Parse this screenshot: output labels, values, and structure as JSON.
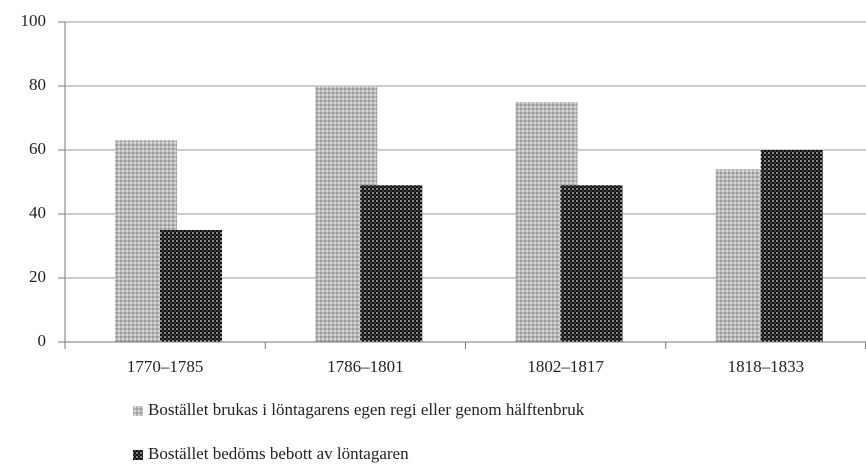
{
  "chart_data": {
    "type": "bar",
    "categories": [
      "1770–1785",
      "1786–1801",
      "1802–1817",
      "1818–1833"
    ],
    "series": [
      {
        "name": "Bostället brukas i löntagarens egen regi eller genom hälftenbruk",
        "color": "#b8b8b8",
        "values": [
          63,
          80,
          75,
          54
        ]
      },
      {
        "name": "Bostället bedöms bebott av löntagaren",
        "color": "#111111",
        "values": [
          35,
          49,
          49,
          60
        ]
      }
    ],
    "ylim": [
      0,
      100
    ],
    "yticks": [
      0,
      20,
      40,
      60,
      80,
      100
    ],
    "grid": true
  }
}
